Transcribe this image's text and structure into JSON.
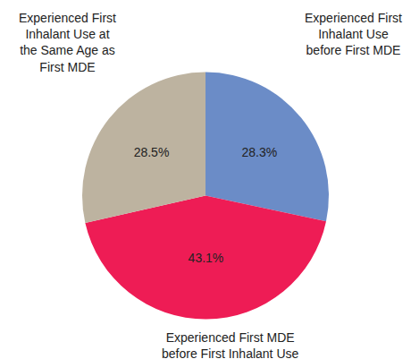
{
  "chart_data": {
    "type": "pie",
    "categories": [
      "Experienced First Inhalant Use before First MDE",
      "Experienced First MDE before First Inhalant Use",
      "Experienced First Inhalant Use at the Same Age as First MDE"
    ],
    "values": [
      28.3,
      43.1,
      28.5
    ],
    "value_labels": [
      "28.3%",
      "43.1%",
      "28.5%"
    ],
    "colors": [
      "#6b8cc7",
      "#ee1c55",
      "#bdb3a0"
    ],
    "data_labels": true,
    "legend": false
  }
}
